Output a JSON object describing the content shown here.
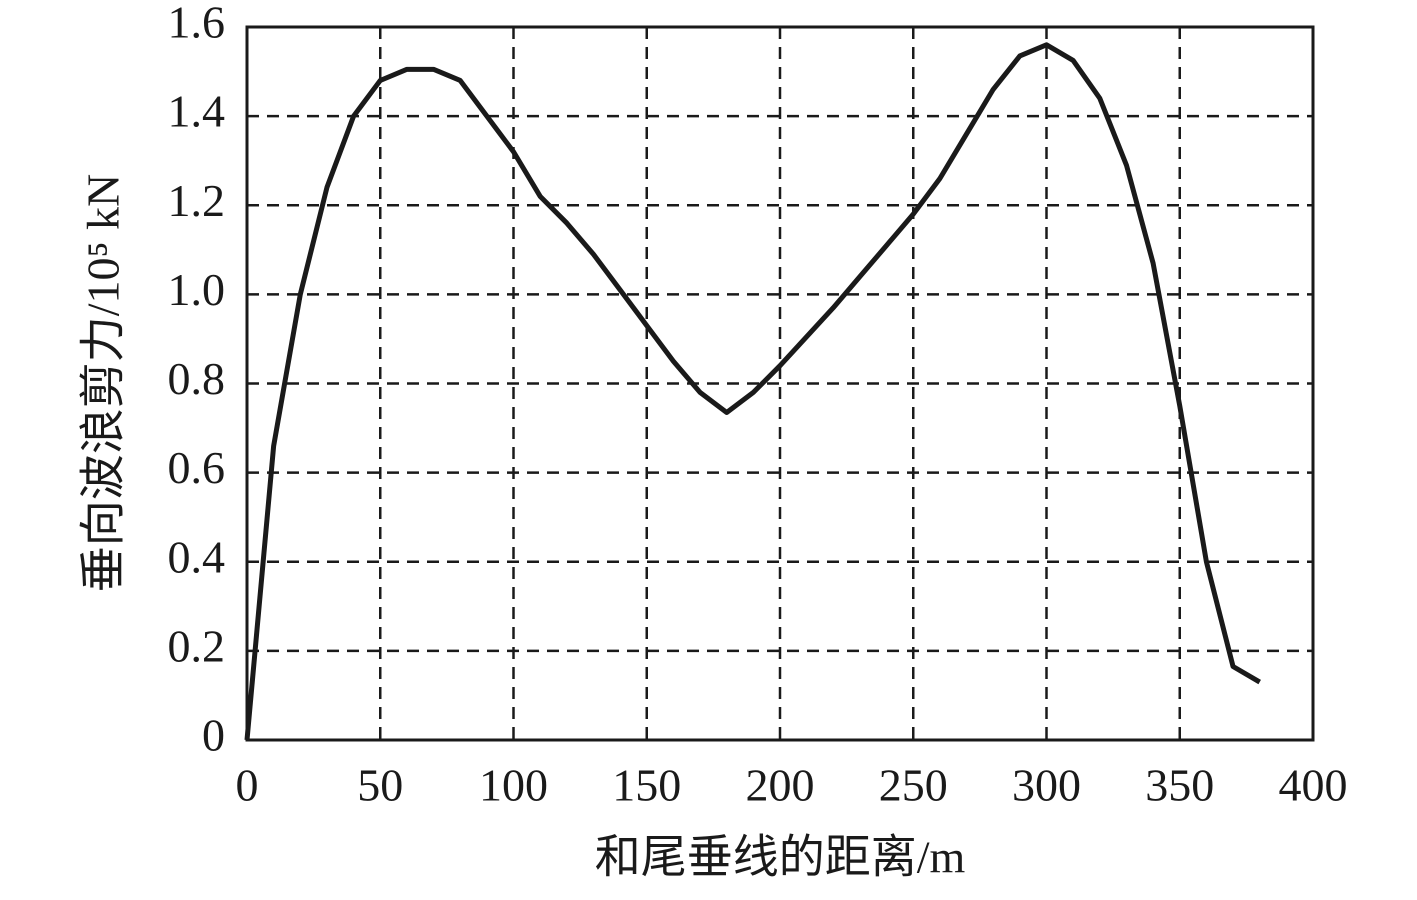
{
  "chart_data": {
    "type": "line",
    "xlabel": "和尾垂线的距离/m",
    "ylabel": "垂向波浪剪力/10⁵ kN",
    "x": [
      0,
      10,
      20,
      30,
      40,
      50,
      60,
      70,
      80,
      90,
      100,
      110,
      120,
      130,
      140,
      150,
      160,
      170,
      180,
      190,
      200,
      210,
      220,
      230,
      240,
      250,
      260,
      270,
      280,
      290,
      300,
      310,
      320,
      330,
      340,
      350,
      360,
      370,
      380
    ],
    "series": [
      {
        "color": "#1a1a1a",
        "values": [
          0,
          0.66,
          1.0,
          1.24,
          1.4,
          1.48,
          1.505,
          1.505,
          1.48,
          1.4,
          1.32,
          1.22,
          1.16,
          1.09,
          1.01,
          0.93,
          0.85,
          0.78,
          0.735,
          0.78,
          0.84,
          0.905,
          0.97,
          1.04,
          1.11,
          1.18,
          1.26,
          1.36,
          1.46,
          1.535,
          1.56,
          1.525,
          1.44,
          1.29,
          1.07,
          0.75,
          0.4,
          0.165,
          0.13
        ]
      }
    ],
    "xlim": [
      0,
      400
    ],
    "xticks": [
      0,
      50,
      100,
      150,
      200,
      250,
      300,
      350,
      400
    ],
    "ylim": [
      0,
      1.6
    ],
    "yticks": [
      0,
      0.2,
      0.4,
      0.6,
      0.8,
      {
        "value": 1,
        "label": "1.0"
      },
      1.2,
      1.4,
      1.6
    ],
    "grid": true
  }
}
